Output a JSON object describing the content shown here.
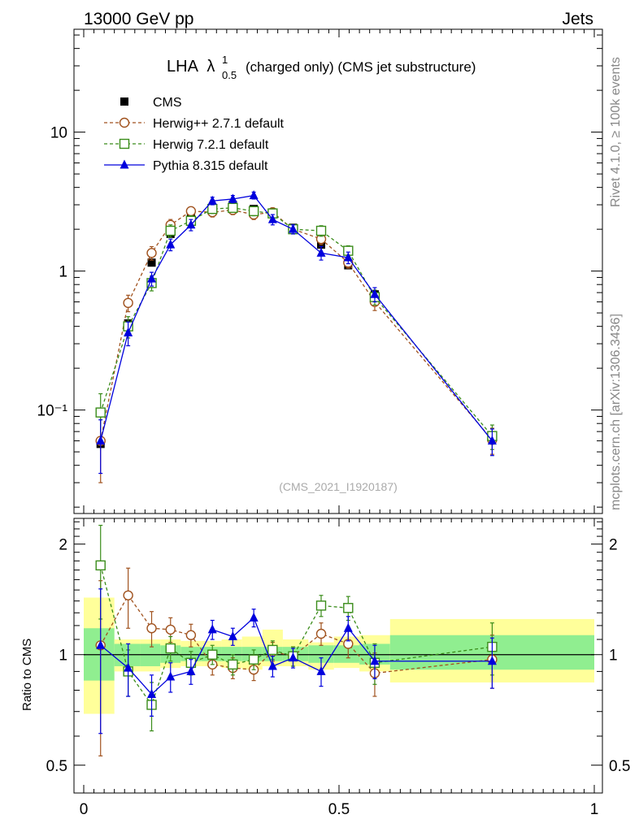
{
  "header": {
    "left": "13000 GeV pp",
    "right": "Jets"
  },
  "side": {
    "rivet": "Rivet 4.1.0, ≥ 100k events",
    "mcplots": "mcplots.cern.ch [arXiv:1306.3436]"
  },
  "colors": {
    "cms": "#000000",
    "herwigpp": "#a0521e",
    "herwig7": "#3a8c1a",
    "pythia": "#0000dd",
    "band_inner": "#90ee90",
    "band_outer": "#ffff9a"
  },
  "chart_data": {
    "type": "line",
    "title_main": "LHA",
    "title_rest": "(charged only) (CMS jet substructure)",
    "title_lambda": "λ",
    "title_sup": "1",
    "title_sub": "0.5",
    "watermark": "(CMS_2021_I1920187)",
    "ylabel_ratio": "Ratio to CMS",
    "xlim": [
      0,
      1
    ],
    "ylim_main": [
      0.018,
      55
    ],
    "ylim_ratio": [
      0.42,
      2.35
    ],
    "x_ticks": [
      "0",
      "0.5",
      "1"
    ],
    "y_ticks_main": [
      "10⁻¹",
      "1",
      "10"
    ],
    "y_ticks_ratio": [
      "0.5",
      "1",
      "2"
    ],
    "x": [
      0.033,
      0.087,
      0.133,
      0.17,
      0.21,
      0.252,
      0.292,
      0.333,
      0.37,
      0.41,
      0.465,
      0.518,
      0.57,
      0.8
    ],
    "bins": [
      [
        0,
        0.06
      ],
      [
        0.06,
        0.11
      ],
      [
        0.11,
        0.15
      ],
      [
        0.15,
        0.19
      ],
      [
        0.19,
        0.23
      ],
      [
        0.23,
        0.27
      ],
      [
        0.27,
        0.31
      ],
      [
        0.31,
        0.35
      ],
      [
        0.35,
        0.39
      ],
      [
        0.39,
        0.44
      ],
      [
        0.44,
        0.49
      ],
      [
        0.49,
        0.54
      ],
      [
        0.54,
        0.6
      ],
      [
        0.6,
        1.0
      ]
    ],
    "series": [
      {
        "name": "CMS",
        "key": "cms",
        "marker": "square-filled",
        "values": [
          0.057,
          0.42,
          1.15,
          1.85,
          2.4,
          2.85,
          3.0,
          2.8,
          2.6,
          2.05,
          1.55,
          1.1,
          0.68,
          0.063
        ]
      },
      {
        "name": "Herwig++ 2.7.1 default",
        "key": "herwigpp",
        "marker": "circle-open",
        "values": [
          0.06,
          0.59,
          1.35,
          2.15,
          2.7,
          2.65,
          2.75,
          2.55,
          2.65,
          2.0,
          1.7,
          1.15,
          0.6,
          0.061
        ],
        "errors": [
          0.03,
          0.08,
          0.15,
          0.2,
          0.2,
          0.2,
          0.2,
          0.2,
          0.2,
          0.15,
          0.15,
          0.1,
          0.08,
          0.013
        ],
        "ratio": [
          1.06,
          1.45,
          1.18,
          1.17,
          1.13,
          0.94,
          0.92,
          0.91,
          1.02,
          0.99,
          1.14,
          1.07,
          0.89,
          0.97
        ],
        "ratio_errors": [
          0.53,
          0.27,
          0.13,
          0.09,
          0.08,
          0.06,
          0.06,
          0.06,
          0.06,
          0.06,
          0.08,
          0.09,
          0.12,
          0.16
        ]
      },
      {
        "name": "Herwig 7.2.1 default",
        "key": "herwig7",
        "marker": "square-open",
        "values": [
          0.096,
          0.4,
          0.82,
          1.95,
          2.3,
          2.8,
          2.85,
          2.7,
          2.6,
          2.0,
          1.95,
          1.4,
          0.65,
          0.065
        ],
        "errors": [
          0.035,
          0.07,
          0.1,
          0.2,
          0.2,
          0.2,
          0.2,
          0.2,
          0.2,
          0.15,
          0.17,
          0.12,
          0.08,
          0.013
        ],
        "ratio": [
          1.75,
          0.9,
          0.73,
          1.04,
          0.95,
          1.0,
          0.94,
          0.97,
          1.03,
          0.99,
          1.36,
          1.34,
          0.95,
          1.05
        ],
        "ratio_errors": [
          0.5,
          0.13,
          0.11,
          0.08,
          0.07,
          0.06,
          0.06,
          0.06,
          0.06,
          0.06,
          0.09,
          0.1,
          0.12,
          0.17
        ]
      },
      {
        "name": "Pythia 8.315 default",
        "key": "pythia",
        "marker": "triangle-filled",
        "values": [
          0.06,
          0.36,
          0.88,
          1.55,
          2.15,
          3.2,
          3.3,
          3.5,
          2.35,
          2.0,
          1.35,
          1.25,
          0.68,
          0.06
        ],
        "errors": [
          0.025,
          0.07,
          0.1,
          0.15,
          0.2,
          0.2,
          0.2,
          0.2,
          0.2,
          0.15,
          0.15,
          0.12,
          0.08,
          0.013
        ],
        "ratio": [
          1.06,
          0.92,
          0.78,
          0.87,
          0.9,
          1.17,
          1.12,
          1.26,
          0.93,
          0.98,
          0.9,
          1.18,
          0.96,
          0.96
        ],
        "ratio_errors": [
          0.45,
          0.15,
          0.1,
          0.08,
          0.07,
          0.07,
          0.06,
          0.07,
          0.06,
          0.06,
          0.08,
          0.09,
          0.1,
          0.15
        ]
      }
    ],
    "bands": {
      "inner_lo": [
        0.85,
        0.93,
        0.93,
        0.95,
        0.96,
        0.96,
        0.96,
        0.96,
        0.96,
        0.96,
        0.95,
        0.95,
        0.94,
        0.91
      ],
      "inner_hi": [
        1.18,
        1.07,
        1.07,
        1.06,
        1.05,
        1.05,
        1.05,
        1.05,
        1.05,
        1.05,
        1.06,
        1.06,
        1.07,
        1.13
      ],
      "outer_lo": [
        0.69,
        0.9,
        0.9,
        0.92,
        0.93,
        0.93,
        0.92,
        0.91,
        0.93,
        0.93,
        0.91,
        0.92,
        0.9,
        0.84
      ],
      "outer_hi": [
        1.43,
        1.1,
        1.1,
        1.1,
        1.09,
        1.09,
        1.1,
        1.12,
        1.17,
        1.1,
        1.08,
        1.12,
        1.13,
        1.25
      ]
    }
  }
}
